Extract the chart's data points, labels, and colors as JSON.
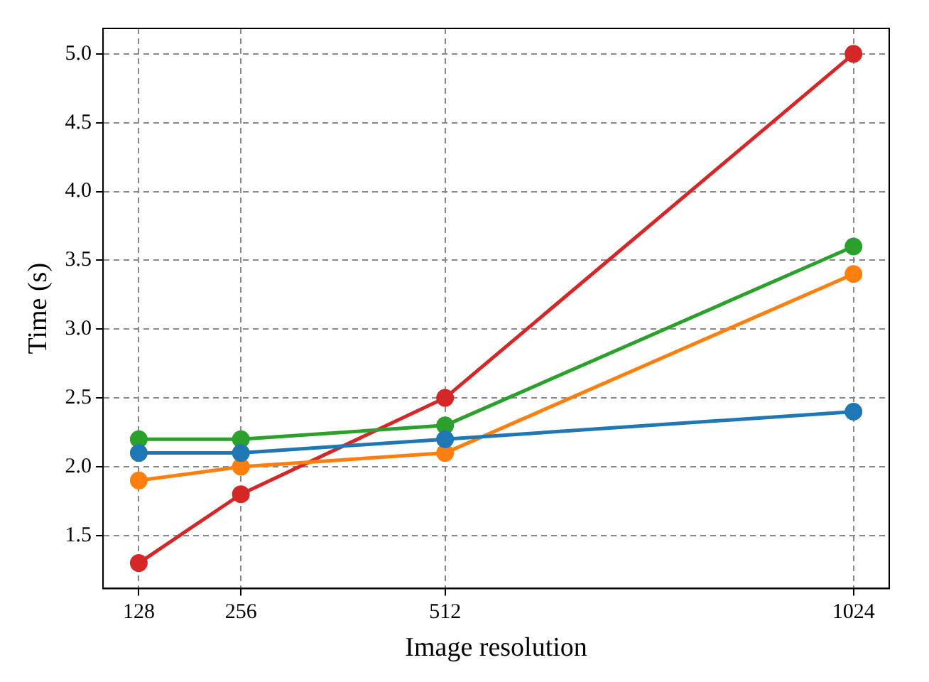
{
  "chart_data": {
    "type": "line",
    "xlabel": "Image resolution",
    "ylabel": "Time (s)",
    "x": [
      128,
      256,
      512,
      1024
    ],
    "series": [
      {
        "color": "#1f77b4",
        "values": [
          2.1,
          2.1,
          2.2,
          2.4
        ]
      },
      {
        "color": "#ff7f0e",
        "values": [
          1.9,
          2.0,
          2.1,
          3.4
        ]
      },
      {
        "color": "#2ca02c",
        "values": [
          2.2,
          2.2,
          2.3,
          3.6
        ]
      },
      {
        "color": "#d62728",
        "values": [
          1.3,
          1.8,
          2.5,
          5.0
        ]
      }
    ],
    "xlim": [
      83.2,
      1068.8
    ],
    "xticks": [
      128,
      256,
      512,
      1024
    ],
    "ylim": [
      1.115,
      5.185
    ],
    "yticks": [
      {
        "value": 1.5,
        "label": "1.5"
      },
      {
        "value": 2.0,
        "label": "2.0"
      },
      {
        "value": 2.5,
        "label": "2.5"
      },
      {
        "value": 3.0,
        "label": "3.0"
      },
      {
        "value": 3.5,
        "label": "3.5"
      },
      {
        "value": 4.0,
        "label": "4.0"
      },
      {
        "value": 4.5,
        "label": "4.5"
      },
      {
        "value": 5.0,
        "label": "5.0"
      }
    ],
    "grid": true,
    "marker": "circle",
    "line_style": "solid",
    "legend": false
  }
}
